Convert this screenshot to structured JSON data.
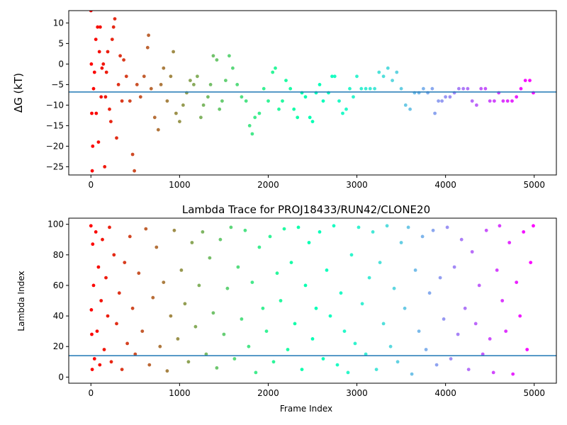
{
  "chart_data": [
    {
      "type": "scatter",
      "title": "",
      "xlabel": "",
      "ylabel": "ΔG (kT)",
      "xlim": [
        -250,
        5250
      ],
      "ylim": [
        -27,
        13
      ],
      "xticks": [
        0,
        1000,
        2000,
        3000,
        4000,
        5000
      ],
      "yticks": [
        -25,
        -20,
        -15,
        -10,
        -5,
        0,
        5,
        10
      ],
      "hline": -6.8,
      "colormap": "rainbow",
      "color_order": "reversed (red at frame 0 to violet at frame 5000)",
      "series": [
        {
          "points": [
            [
              0,
              13
            ],
            [
              5,
              0
            ],
            [
              10,
              -12
            ],
            [
              15,
              -26
            ],
            [
              20,
              -20
            ],
            [
              30,
              -6
            ],
            [
              40,
              -2
            ],
            [
              55,
              6
            ],
            [
              60,
              -12
            ],
            [
              75,
              9
            ],
            [
              85,
              -19
            ],
            [
              95,
              3
            ],
            [
              105,
              9
            ],
            [
              115,
              -8
            ],
            [
              125,
              -1
            ],
            [
              140,
              0
            ],
            [
              155,
              -25
            ],
            [
              165,
              -8
            ],
            [
              175,
              -2
            ],
            [
              190,
              3
            ],
            [
              210,
              -11
            ],
            [
              225,
              -14
            ],
            [
              240,
              6
            ],
            [
              255,
              9
            ],
            [
              270,
              11
            ],
            [
              290,
              -18
            ],
            [
              310,
              -5
            ],
            [
              330,
              2
            ],
            [
              350,
              -9
            ],
            [
              370,
              1
            ],
            [
              400,
              -3
            ],
            [
              440,
              -9
            ],
            [
              470,
              -22
            ],
            [
              490,
              -26
            ],
            [
              520,
              -5
            ],
            [
              560,
              -8
            ],
            [
              600,
              -3
            ],
            [
              640,
              4
            ],
            [
              650,
              7
            ],
            [
              680,
              -6
            ],
            [
              720,
              -13
            ],
            [
              760,
              -16
            ],
            [
              790,
              -5
            ],
            [
              820,
              -1
            ],
            [
              860,
              -9
            ],
            [
              900,
              -3
            ],
            [
              930,
              3
            ],
            [
              960,
              -12
            ],
            [
              1000,
              -14
            ],
            [
              1040,
              -10
            ],
            [
              1080,
              -7
            ],
            [
              1120,
              -4
            ],
            [
              1160,
              -5
            ],
            [
              1200,
              -3
            ],
            [
              1240,
              -13
            ],
            [
              1270,
              -10
            ],
            [
              1320,
              -8
            ],
            [
              1350,
              -5
            ],
            [
              1380,
              2
            ],
            [
              1420,
              1
            ],
            [
              1450,
              -11
            ],
            [
              1480,
              -9
            ],
            [
              1520,
              -4
            ],
            [
              1560,
              2
            ],
            [
              1600,
              -1
            ],
            [
              1650,
              -5
            ],
            [
              1700,
              -8
            ],
            [
              1750,
              -9
            ],
            [
              1790,
              -15
            ],
            [
              1820,
              -17
            ],
            [
              1850,
              -13
            ],
            [
              1900,
              -12
            ],
            [
              1950,
              -6
            ],
            [
              2000,
              -9
            ],
            [
              2050,
              -2
            ],
            [
              2080,
              -1
            ],
            [
              2120,
              -11
            ],
            [
              2160,
              -9
            ],
            [
              2200,
              -4
            ],
            [
              2250,
              -6
            ],
            [
              2290,
              -11
            ],
            [
              2330,
              -13
            ],
            [
              2380,
              -7
            ],
            [
              2420,
              -8
            ],
            [
              2470,
              -13
            ],
            [
              2500,
              -14
            ],
            [
              2540,
              -7
            ],
            [
              2580,
              -5
            ],
            [
              2620,
              -9
            ],
            [
              2680,
              -7
            ],
            [
              2720,
              -3
            ],
            [
              2750,
              -3
            ],
            [
              2800,
              -9
            ],
            [
              2840,
              -12
            ],
            [
              2880,
              -11
            ],
            [
              2920,
              -6
            ],
            [
              2960,
              -8
            ],
            [
              3000,
              -3
            ],
            [
              3050,
              -6
            ],
            [
              3100,
              -6
            ],
            [
              3150,
              -6
            ],
            [
              3200,
              -6
            ],
            [
              3250,
              -2
            ],
            [
              3300,
              -3
            ],
            [
              3350,
              -1
            ],
            [
              3400,
              -4
            ],
            [
              3450,
              -2
            ],
            [
              3500,
              -6
            ],
            [
              3550,
              -10
            ],
            [
              3600,
              -11
            ],
            [
              3650,
              -7
            ],
            [
              3700,
              -7
            ],
            [
              3750,
              -6
            ],
            [
              3800,
              -7
            ],
            [
              3850,
              -6
            ],
            [
              3880,
              -12
            ],
            [
              3920,
              -9
            ],
            [
              3960,
              -9
            ],
            [
              4000,
              -8
            ],
            [
              4050,
              -8
            ],
            [
              4100,
              -7
            ],
            [
              4150,
              -6
            ],
            [
              4200,
              -6
            ],
            [
              4250,
              -6
            ],
            [
              4300,
              -9
            ],
            [
              4350,
              -10
            ],
            [
              4400,
              -6
            ],
            [
              4450,
              -6
            ],
            [
              4500,
              -9
            ],
            [
              4550,
              -9
            ],
            [
              4600,
              -7
            ],
            [
              4650,
              -9
            ],
            [
              4700,
              -9
            ],
            [
              4750,
              -9
            ],
            [
              4800,
              -8
            ],
            [
              4850,
              -6
            ],
            [
              4900,
              -4
            ],
            [
              4950,
              -4
            ],
            [
              4990,
              -7
            ]
          ]
        }
      ]
    },
    {
      "type": "scatter",
      "title": "Lambda Trace for PROJ18433/RUN42/CLONE20",
      "xlabel": "Frame Index",
      "ylabel": "Lambda Index",
      "xlim": [
        -250,
        5250
      ],
      "ylim": [
        -4,
        104
      ],
      "xticks": [
        0,
        1000,
        2000,
        3000,
        4000,
        5000
      ],
      "yticks": [
        0,
        20,
        40,
        60,
        80,
        100
      ],
      "hline": 14,
      "colormap": "rainbow",
      "color_order": "reversed (red at frame 0 to violet at frame 5000)",
      "series": [
        {
          "description": "lambda index sampled per frame, values spread between 0 and 99",
          "points": [
            [
              0,
              99
            ],
            [
              5,
              44
            ],
            [
              10,
              28
            ],
            [
              15,
              5
            ],
            [
              20,
              87
            ],
            [
              30,
              60
            ],
            [
              40,
              12
            ],
            [
              55,
              95
            ],
            [
              70,
              30
            ],
            [
              85,
              72
            ],
            [
              100,
              8
            ],
            [
              115,
              50
            ],
            [
              130,
              90
            ],
            [
              150,
              18
            ],
            [
              170,
              65
            ],
            [
              190,
              40
            ],
            [
              210,
              98
            ],
            [
              230,
              10
            ],
            [
              260,
              80
            ],
            [
              290,
              35
            ],
            [
              320,
              55
            ],
            [
              350,
              5
            ],
            [
              380,
              75
            ],
            [
              410,
              22
            ],
            [
              440,
              92
            ],
            [
              470,
              45
            ],
            [
              500,
              15
            ],
            [
              540,
              68
            ],
            [
              580,
              30
            ],
            [
              620,
              97
            ],
            [
              660,
              8
            ],
            [
              700,
              52
            ],
            [
              740,
              85
            ],
            [
              780,
              20
            ],
            [
              820,
              62
            ],
            [
              860,
              4
            ],
            [
              900,
              40
            ],
            [
              940,
              96
            ],
            [
              980,
              25
            ],
            [
              1020,
              70
            ],
            [
              1060,
              48
            ],
            [
              1100,
              10
            ],
            [
              1140,
              88
            ],
            [
              1180,
              33
            ],
            [
              1220,
              60
            ],
            [
              1260,
              95
            ],
            [
              1300,
              15
            ],
            [
              1340,
              78
            ],
            [
              1380,
              42
            ],
            [
              1420,
              6
            ],
            [
              1460,
              90
            ],
            [
              1500,
              28
            ],
            [
              1540,
              58
            ],
            [
              1580,
              98
            ],
            [
              1620,
              12
            ],
            [
              1660,
              72
            ],
            [
              1700,
              38
            ],
            [
              1740,
              96
            ],
            [
              1780,
              20
            ],
            [
              1820,
              62
            ],
            [
              1860,
              3
            ],
            [
              1900,
              85
            ],
            [
              1940,
              45
            ],
            [
              1980,
              30
            ],
            [
              2020,
              92
            ],
            [
              2060,
              10
            ],
            [
              2100,
              68
            ],
            [
              2140,
              50
            ],
            [
              2180,
              97
            ],
            [
              2220,
              18
            ],
            [
              2260,
              75
            ],
            [
              2300,
              35
            ],
            [
              2340,
              98
            ],
            [
              2380,
              5
            ],
            [
              2420,
              60
            ],
            [
              2460,
              88
            ],
            [
              2500,
              25
            ],
            [
              2540,
              45
            ],
            [
              2580,
              95
            ],
            [
              2620,
              12
            ],
            [
              2660,
              70
            ],
            [
              2700,
              40
            ],
            [
              2740,
              99
            ],
            [
              2780,
              8
            ],
            [
              2820,
              55
            ],
            [
              2860,
              30
            ],
            [
              2900,
              3
            ],
            [
              2940,
              80
            ],
            [
              2980,
              22
            ],
            [
              3020,
              98
            ],
            [
              3060,
              48
            ],
            [
              3100,
              15
            ],
            [
              3140,
              65
            ],
            [
              3180,
              95
            ],
            [
              3220,
              5
            ],
            [
              3260,
              75
            ],
            [
              3300,
              35
            ],
            [
              3340,
              99
            ],
            [
              3380,
              20
            ],
            [
              3420,
              58
            ],
            [
              3460,
              10
            ],
            [
              3500,
              88
            ],
            [
              3540,
              45
            ],
            [
              3580,
              98
            ],
            [
              3620,
              2
            ],
            [
              3660,
              70
            ],
            [
              3700,
              30
            ],
            [
              3740,
              92
            ],
            [
              3780,
              18
            ],
            [
              3820,
              55
            ],
            [
              3860,
              96
            ],
            [
              3900,
              8
            ],
            [
              3940,
              65
            ],
            [
              3980,
              38
            ],
            [
              4020,
              98
            ],
            [
              4060,
              12
            ],
            [
              4100,
              72
            ],
            [
              4140,
              28
            ],
            [
              4180,
              90
            ],
            [
              4220,
              45
            ],
            [
              4260,
              5
            ],
            [
              4300,
              82
            ],
            [
              4340,
              35
            ],
            [
              4380,
              60
            ],
            [
              4420,
              15
            ],
            [
              4460,
              96
            ],
            [
              4500,
              25
            ],
            [
              4540,
              3
            ],
            [
              4580,
              70
            ],
            [
              4610,
              99
            ],
            [
              4640,
              50
            ],
            [
              4680,
              30
            ],
            [
              4720,
              88
            ],
            [
              4760,
              2
            ],
            [
              4800,
              62
            ],
            [
              4840,
              40
            ],
            [
              4880,
              95
            ],
            [
              4920,
              18
            ],
            [
              4960,
              75
            ],
            [
              4990,
              99
            ]
          ]
        }
      ]
    }
  ]
}
